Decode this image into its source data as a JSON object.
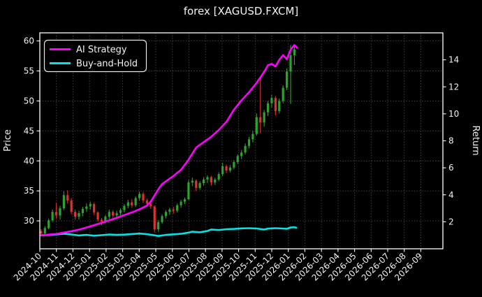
{
  "window": {
    "title": "forex [XAGUSD.FXCM]"
  },
  "colors": {
    "background": "#000000",
    "text": "#f2f2f2",
    "grid": "#4d4d4d",
    "spine": "#ffffff",
    "ai_strategy": "#ff00ff",
    "buy_and_hold": "#00e5e5",
    "candle_up": "#2da32d",
    "candle_down": "#e03131"
  },
  "legend": {
    "position": "upper left",
    "items": [
      {
        "label": "AI Strategy",
        "color": "#ff00ff"
      },
      {
        "label": "Buy-and-Hold",
        "color": "#00e5e5"
      }
    ]
  },
  "chart_data": {
    "type": "candlestick+line",
    "title": "forex [XAGUSD.FXCM]",
    "grid": "dotted",
    "legend_position": "upper left",
    "x_axis": {
      "tick_labels": [
        "2024-10",
        "2024-11",
        "2024-12",
        "2025-01",
        "2025-02",
        "2025-03",
        "2025-04",
        "2025-05",
        "2025-06",
        "2025-07",
        "2025-08",
        "2025-09",
        "2025-10",
        "2025-11",
        "2025-12",
        "2026-01",
        "2026-02",
        "2026-03",
        "2026-04",
        "2026-05",
        "2026-06",
        "2026-07",
        "2026-08",
        "2026-09"
      ],
      "range_months": [
        0,
        24.33
      ],
      "label_rotation_deg": 45
    },
    "left_axis": {
      "label": "Price",
      "ticks": [
        30,
        35,
        40,
        45,
        50,
        55,
        60
      ],
      "range": [
        25.35,
        61.35
      ]
    },
    "right_axis": {
      "label": "Return",
      "ticks": [
        2,
        4,
        6,
        8,
        10,
        12,
        14
      ],
      "range": [
        0,
        16
      ]
    },
    "weeks_per_month": 4.383,
    "week0_month_offset": 0.08,
    "candles_weekly_ohlc": [
      [
        "2024-09-30",
        28.3,
        28.6,
        27.4,
        27.9
      ],
      [
        "2024-10-07",
        27.9,
        29.1,
        27.6,
        28.8
      ],
      [
        "2024-10-14",
        28.8,
        30.4,
        28.6,
        30.1
      ],
      [
        "2024-10-21",
        30.1,
        31.9,
        29.8,
        31.5
      ],
      [
        "2024-10-28",
        31.5,
        33.0,
        30.4,
        30.9
      ],
      [
        "2024-11-04",
        30.9,
        32.5,
        30.2,
        32.1
      ],
      [
        "2024-11-11",
        32.1,
        34.9,
        31.8,
        34.3
      ],
      [
        "2024-11-18",
        34.3,
        35.1,
        32.9,
        33.4
      ],
      [
        "2024-11-25",
        33.4,
        33.8,
        31.1,
        31.5
      ],
      [
        "2024-12-02",
        31.5,
        31.9,
        30.2,
        30.7
      ],
      [
        "2024-12-09",
        30.7,
        31.7,
        30.2,
        31.3
      ],
      [
        "2024-12-16",
        31.3,
        32.3,
        30.8,
        32.0
      ],
      [
        "2024-12-23",
        32.0,
        32.9,
        31.5,
        32.4
      ],
      [
        "2024-12-30",
        32.4,
        33.2,
        31.9,
        32.8
      ],
      [
        "2025-01-06",
        32.8,
        33.0,
        31.0,
        31.4
      ],
      [
        "2025-01-13",
        31.4,
        31.6,
        29.9,
        30.2
      ],
      [
        "2025-01-20",
        30.2,
        30.5,
        29.3,
        29.9
      ],
      [
        "2025-01-27",
        29.9,
        31.0,
        29.6,
        30.7
      ],
      [
        "2025-02-03",
        30.7,
        31.9,
        30.3,
        31.5
      ],
      [
        "2025-02-10",
        31.5,
        31.8,
        30.5,
        30.9
      ],
      [
        "2025-02-17",
        30.9,
        31.7,
        30.4,
        31.3
      ],
      [
        "2025-02-24",
        31.3,
        32.1,
        30.9,
        31.8
      ],
      [
        "2025-03-03",
        31.8,
        32.8,
        31.4,
        32.5
      ],
      [
        "2025-03-10",
        32.5,
        33.5,
        32.1,
        33.1
      ],
      [
        "2025-03-17",
        33.1,
        33.6,
        32.2,
        32.6
      ],
      [
        "2025-03-24",
        32.6,
        34.1,
        32.3,
        33.8
      ],
      [
        "2025-03-31",
        33.8,
        34.9,
        33.4,
        34.5
      ],
      [
        "2025-04-07",
        34.5,
        34.8,
        33.0,
        33.4
      ],
      [
        "2025-04-14",
        33.4,
        33.7,
        32.5,
        32.9
      ],
      [
        "2025-04-21",
        32.9,
        33.3,
        32.0,
        32.4
      ],
      [
        "2025-04-28",
        32.4,
        32.6,
        28.1,
        28.6
      ],
      [
        "2025-05-05",
        28.6,
        30.1,
        28.2,
        29.8
      ],
      [
        "2025-05-12",
        29.8,
        31.1,
        29.5,
        30.8
      ],
      [
        "2025-05-19",
        30.8,
        31.8,
        30.4,
        31.5
      ],
      [
        "2025-05-26",
        31.5,
        32.2,
        31.0,
        31.9
      ],
      [
        "2025-06-02",
        31.9,
        32.3,
        31.2,
        31.7
      ],
      [
        "2025-06-09",
        31.7,
        32.9,
        31.4,
        32.6
      ],
      [
        "2025-06-16",
        32.6,
        33.5,
        32.2,
        33.2
      ],
      [
        "2025-06-23",
        33.2,
        33.9,
        32.8,
        33.6
      ],
      [
        "2025-06-30",
        33.6,
        36.8,
        33.5,
        36.4
      ],
      [
        "2025-07-07",
        36.4,
        37.2,
        35.8,
        36.7
      ],
      [
        "2025-07-14",
        36.7,
        36.9,
        35.0,
        35.5
      ],
      [
        "2025-07-21",
        35.5,
        36.6,
        35.2,
        36.3
      ],
      [
        "2025-07-28",
        36.3,
        37.3,
        35.9,
        36.9
      ],
      [
        "2025-08-04",
        36.9,
        37.6,
        36.3,
        37.3
      ],
      [
        "2025-08-11",
        37.3,
        37.5,
        35.9,
        36.4
      ],
      [
        "2025-08-18",
        36.4,
        37.2,
        36.0,
        36.9
      ],
      [
        "2025-08-25",
        36.9,
        38.1,
        36.6,
        37.8
      ],
      [
        "2025-09-01",
        37.8,
        39.7,
        37.5,
        39.1
      ],
      [
        "2025-09-08",
        39.1,
        39.4,
        38.0,
        38.4
      ],
      [
        "2025-09-15",
        38.4,
        39.3,
        38.1,
        38.9
      ],
      [
        "2025-09-22",
        38.9,
        40.1,
        38.6,
        39.8
      ],
      [
        "2025-09-29",
        39.8,
        41.1,
        39.5,
        40.8
      ],
      [
        "2025-10-06",
        40.8,
        41.8,
        40.3,
        41.4
      ],
      [
        "2025-10-13",
        41.4,
        42.9,
        41.1,
        42.5
      ],
      [
        "2025-10-20",
        42.5,
        44.0,
        42.1,
        43.6
      ],
      [
        "2025-10-27",
        43.6,
        45.0,
        43.1,
        44.5
      ],
      [
        "2025-11-03",
        44.5,
        47.9,
        44.2,
        47.3
      ],
      [
        "2025-11-10",
        47.3,
        53.8,
        44.6,
        46.4
      ],
      [
        "2025-11-17",
        46.4,
        48.5,
        45.7,
        48.1
      ],
      [
        "2025-11-24",
        48.1,
        50.0,
        47.5,
        49.6
      ],
      [
        "2025-12-01",
        49.6,
        51.0,
        48.9,
        50.5
      ],
      [
        "2025-12-08",
        50.5,
        50.8,
        47.6,
        48.3
      ],
      [
        "2025-12-15",
        48.3,
        50.4,
        47.9,
        50.0
      ],
      [
        "2025-12-22",
        50.0,
        52.6,
        49.6,
        52.2
      ],
      [
        "2025-12-29",
        52.2,
        55.4,
        51.8,
        54.9
      ],
      [
        "2026-01-05",
        54.9,
        59.3,
        49.5,
        57.6
      ],
      [
        "2026-01-12",
        57.6,
        59.1,
        56.0,
        58.6
      ]
    ],
    "series": [
      {
        "name": "AI Strategy",
        "axis": "return",
        "color": "#ff00ff",
        "points_week_value": [
          [
            0,
            1.0
          ],
          [
            2,
            1.05
          ],
          [
            4,
            1.1
          ],
          [
            6,
            1.2
          ],
          [
            8,
            1.3
          ],
          [
            10,
            1.42
          ],
          [
            12,
            1.58
          ],
          [
            14,
            1.75
          ],
          [
            16,
            1.93
          ],
          [
            18,
            2.1
          ],
          [
            20,
            2.3
          ],
          [
            22,
            2.5
          ],
          [
            24,
            2.7
          ],
          [
            26,
            2.92
          ],
          [
            28,
            3.2
          ],
          [
            29,
            3.5
          ],
          [
            30,
            3.95
          ],
          [
            31,
            4.4
          ],
          [
            32,
            4.8
          ],
          [
            33,
            5.0
          ],
          [
            35,
            5.4
          ],
          [
            37,
            5.85
          ],
          [
            39,
            6.6
          ],
          [
            41,
            7.5
          ],
          [
            43,
            7.9
          ],
          [
            45,
            8.3
          ],
          [
            47,
            8.8
          ],
          [
            49,
            9.4
          ],
          [
            51,
            10.3
          ],
          [
            53,
            11.0
          ],
          [
            55,
            11.6
          ],
          [
            57,
            12.3
          ],
          [
            59,
            13.1
          ],
          [
            60,
            13.6
          ],
          [
            61,
            13.7
          ],
          [
            62,
            13.5
          ],
          [
            63,
            14.0
          ],
          [
            64,
            14.35
          ],
          [
            65,
            14.05
          ],
          [
            66,
            14.75
          ],
          [
            67,
            15.1
          ],
          [
            67.7,
            14.9
          ]
        ]
      },
      {
        "name": "Buy-and-Hold",
        "axis": "return",
        "color": "#00e5e5",
        "points_week_value": [
          [
            0,
            1.0
          ],
          [
            3,
            1.04
          ],
          [
            6,
            1.12
          ],
          [
            8,
            1.06
          ],
          [
            10,
            0.99
          ],
          [
            12,
            1.03
          ],
          [
            14,
            0.97
          ],
          [
            16,
            1.01
          ],
          [
            18,
            1.06
          ],
          [
            20,
            1.03
          ],
          [
            22,
            1.05
          ],
          [
            24,
            1.09
          ],
          [
            26,
            1.13
          ],
          [
            28,
            1.08
          ],
          [
            30,
            1.0
          ],
          [
            31,
            0.95
          ],
          [
            33,
            1.03
          ],
          [
            35,
            1.07
          ],
          [
            37,
            1.11
          ],
          [
            39,
            1.2
          ],
          [
            40,
            1.27
          ],
          [
            42,
            1.22
          ],
          [
            44,
            1.32
          ],
          [
            45,
            1.43
          ],
          [
            47,
            1.39
          ],
          [
            49,
            1.45
          ],
          [
            51,
            1.47
          ],
          [
            53,
            1.51
          ],
          [
            55,
            1.53
          ],
          [
            57,
            1.5
          ],
          [
            59,
            1.43
          ],
          [
            60,
            1.49
          ],
          [
            62,
            1.53
          ],
          [
            64,
            1.5
          ],
          [
            65,
            1.48
          ],
          [
            66,
            1.58
          ],
          [
            67,
            1.6
          ],
          [
            67.5,
            1.56
          ]
        ]
      }
    ]
  }
}
